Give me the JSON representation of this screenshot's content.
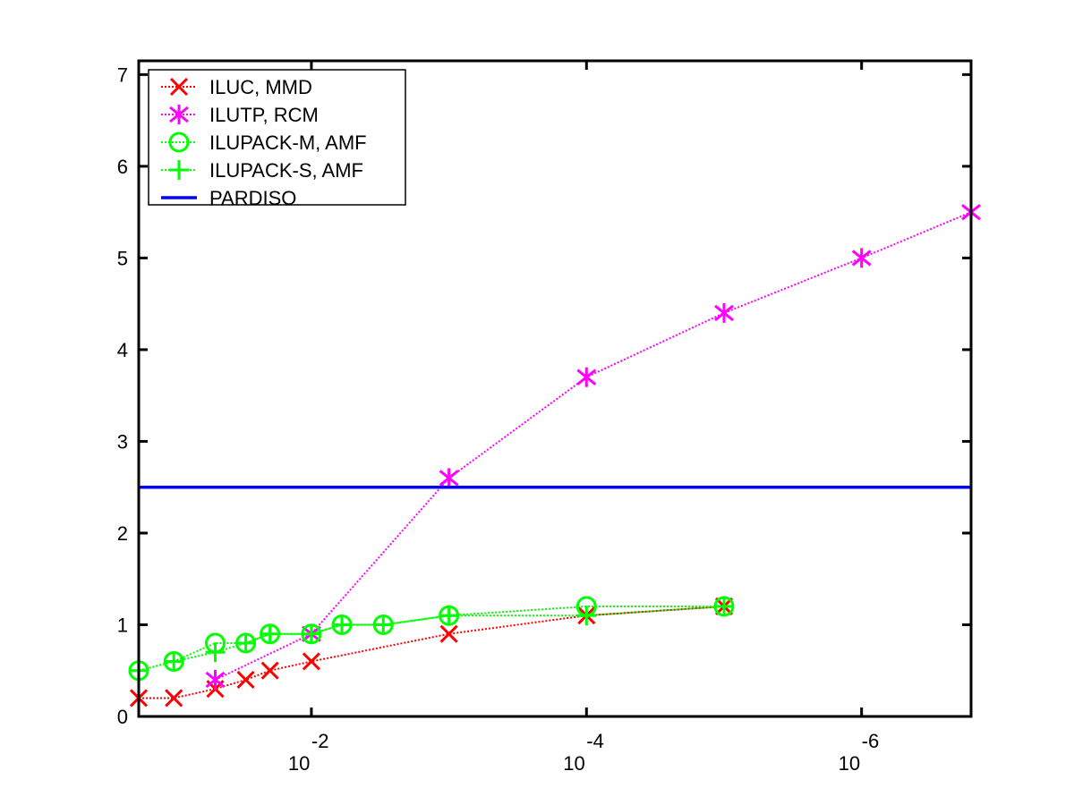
{
  "chart_data": {
    "type": "line",
    "title": "",
    "xlabel": "",
    "ylabel": "",
    "x_scale": "log",
    "x_reversed": true,
    "xlim": [
      0.18,
      1.6e-07
    ],
    "ylim": [
      0,
      7.15
    ],
    "x_ticks": [
      {
        "value": 0.01,
        "base": "10",
        "exp": "-2"
      },
      {
        "value": 0.0001,
        "base": "10",
        "exp": "-4"
      },
      {
        "value": 1e-06,
        "base": "10",
        "exp": "-6"
      }
    ],
    "y_ticks": [
      "0",
      "1",
      "2",
      "3",
      "4",
      "5",
      "6",
      "7"
    ],
    "legend_position": "top-left",
    "grid": false,
    "series": [
      {
        "name": "ILUC, MMD",
        "color": "#ff0000",
        "marker": "x",
        "line": "dotted",
        "x": [
          0.18,
          0.1,
          0.05,
          0.03,
          0.02,
          0.01,
          0.001,
          0.0001,
          1e-05
        ],
        "y": [
          0.2,
          0.2,
          0.3,
          0.4,
          0.5,
          0.6,
          0.9,
          1.1,
          1.2
        ]
      },
      {
        "name": "ILUTP, RCM",
        "color": "#ff00ff",
        "marker": "asterisk",
        "line": "dotted",
        "x": [
          0.05,
          0.01,
          0.001,
          0.0001,
          1e-05,
          1e-06,
          1.6e-07
        ],
        "y": [
          0.4,
          0.9,
          2.6,
          3.7,
          4.4,
          5.0,
          5.5
        ]
      },
      {
        "name": "ILUPACK-M, AMF",
        "color": "#00ff00",
        "marker": "circle",
        "line": "dotted",
        "x": [
          0.18,
          0.1,
          0.05,
          0.03,
          0.02,
          0.01,
          0.006,
          0.003,
          0.001,
          0.0001,
          1e-05
        ],
        "y": [
          0.5,
          0.6,
          0.8,
          0.8,
          0.9,
          0.9,
          1.0,
          1.0,
          1.1,
          1.2,
          1.2
        ]
      },
      {
        "name": "ILUPACK-S, AMF",
        "color": "#00ff00",
        "marker": "plus",
        "line": "dotted",
        "x": [
          0.18,
          0.1,
          0.05,
          0.03,
          0.02,
          0.01,
          0.006,
          0.003,
          0.001,
          0.0001,
          1e-05
        ],
        "y": [
          0.5,
          0.6,
          0.7,
          0.8,
          0.9,
          0.9,
          1.0,
          1.0,
          1.1,
          1.1,
          1.2
        ]
      },
      {
        "name": "PARDISO",
        "color": "#0000ff",
        "marker": "none",
        "line": "solid",
        "x": [
          0.18,
          1.6e-07
        ],
        "y": [
          2.5,
          2.5
        ]
      }
    ]
  }
}
